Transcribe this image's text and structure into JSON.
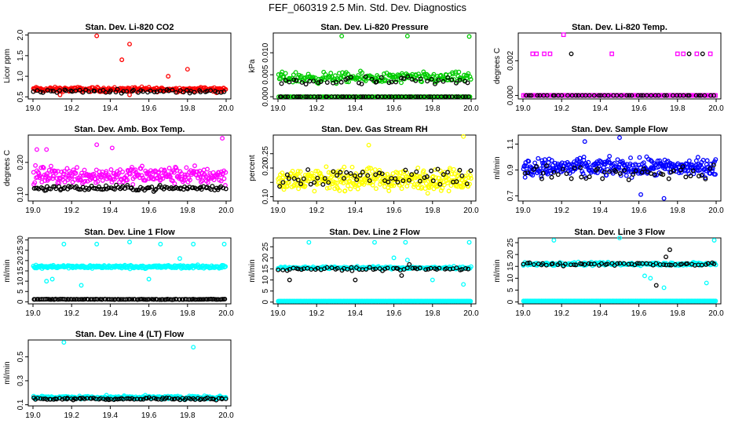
{
  "page": {
    "title": "FEF_060319  2.5 Min. Std. Dev. Diagnostics"
  },
  "colors": {
    "red": "#ff0000",
    "green": "#00cc00",
    "magenta": "#ff00ff",
    "yellow": "#ffff00",
    "blue": "#0000ff",
    "cyan": "#00ffff",
    "black": "#000000"
  },
  "chart_data": [
    {
      "type": "scatter",
      "id": "co2",
      "title": "Stan. Dev. Li-820 CO2",
      "ylabel": "Licor ppm",
      "xlabel": "",
      "xlim": [
        19.0,
        20.0
      ],
      "ylim": [
        0.45,
        2.05
      ],
      "xticks": [
        "19.0",
        "19.2",
        "19.4",
        "19.6",
        "19.8",
        "20.0"
      ],
      "yticks": [
        {
          "v": 0.5,
          "t": "0.5"
        },
        {
          "v": 1.0,
          "t": "1.0"
        },
        {
          "v": 1.5,
          "t": "1.5"
        },
        {
          "v": 2.0,
          "t": "2.0"
        }
      ],
      "series": [
        {
          "color": "#ff0000",
          "base": 0.68,
          "spread": 0.08,
          "count": 260,
          "dist": "even",
          "shape": "circle",
          "extra": [
            [
              19.33,
              1.98
            ],
            [
              19.5,
              1.78
            ],
            [
              19.46,
              1.4
            ],
            [
              19.8,
              1.17
            ],
            [
              19.7,
              1.0
            ],
            [
              19.95,
              0.6
            ],
            [
              19.14,
              0.55
            ],
            [
              19.5,
              0.55
            ]
          ]
        },
        {
          "color": "#000000",
          "base": 0.64,
          "spread": 0.06,
          "count": 60,
          "dist": "even",
          "shape": "circle",
          "extra": []
        }
      ]
    },
    {
      "type": "scatter",
      "id": "pressure",
      "title": "Stan. Dev. Li-820 Pressure",
      "ylabel": "kPa",
      "xlabel": "",
      "xlim": [
        19.0,
        20.0
      ],
      "ylim": [
        -0.0005,
        0.0145
      ],
      "xticks": [
        "19.0",
        "19.2",
        "19.4",
        "19.6",
        "19.8",
        "20.0"
      ],
      "yticks": [
        {
          "v": 0.0,
          "t": "0.000"
        },
        {
          "v": 0.005,
          "t": "0.005"
        },
        {
          "v": 0.01,
          "t": "0.010"
        }
      ],
      "series": [
        {
          "color": "#00cc00",
          "base": 0.0,
          "spread": 0.0,
          "count": 140,
          "dist": "even",
          "shape": "circle",
          "extra": []
        },
        {
          "color": "#00cc00",
          "base": 0.0043,
          "spread": 0.0018,
          "count": 200,
          "dist": "even",
          "shape": "circle",
          "extra": [
            [
              19.33,
              0.0138
            ],
            [
              19.67,
              0.0138
            ],
            [
              19.99,
              0.0137
            ]
          ]
        },
        {
          "color": "#000000",
          "base": 0.0035,
          "spread": 0.0016,
          "count": 45,
          "dist": "even",
          "shape": "circle",
          "extra": []
        },
        {
          "color": "#000000",
          "base": 0.0,
          "spread": 0.0,
          "count": 60,
          "dist": "even",
          "shape": "circle",
          "extra": []
        }
      ]
    },
    {
      "type": "scatter",
      "id": "temp",
      "title": "Stan. Dev. Li-820 Temp.",
      "ylabel": "degrees C",
      "xlabel": "",
      "xlim": [
        19.0,
        20.0
      ],
      "ylim": [
        -0.0002,
        0.0036
      ],
      "xticks": [
        "19.0",
        "19.2",
        "19.4",
        "19.6",
        "19.8",
        "20.0"
      ],
      "yticks": [
        {
          "v": 0.0,
          "t": "0.000"
        },
        {
          "v": 0.002,
          "t": "0.002"
        }
      ],
      "series": [
        {
          "color": "#ff00ff",
          "base": 0.0,
          "spread": 0.0,
          "count": 170,
          "dist": "even",
          "shape": "square",
          "extra": [
            [
              19.05,
              0.0024
            ],
            [
              19.07,
              0.0024
            ],
            [
              19.11,
              0.0024
            ],
            [
              19.14,
              0.0024
            ],
            [
              19.21,
              0.0035
            ],
            [
              19.46,
              0.0024
            ],
            [
              19.8,
              0.0024
            ],
            [
              19.83,
              0.0024
            ],
            [
              19.9,
              0.0024
            ],
            [
              19.97,
              0.0024
            ]
          ]
        },
        {
          "color": "#000000",
          "base": 0.0,
          "spread": 0.0,
          "count": 50,
          "dist": "even",
          "shape": "circle",
          "extra": [
            [
              19.25,
              0.0024
            ],
            [
              19.86,
              0.0024
            ],
            [
              19.93,
              0.0024
            ]
          ]
        }
      ]
    },
    {
      "type": "scatter",
      "id": "boxtemp",
      "title": "Stan. Dev. Amb. Box Temp.",
      "ylabel": "degrees C",
      "xlabel": "",
      "xlim": [
        19.0,
        20.0
      ],
      "ylim": [
        0.08,
        0.285
      ],
      "xticks": [
        "19.0",
        "19.2",
        "19.4",
        "19.6",
        "19.8",
        "20.0"
      ],
      "yticks": [
        {
          "v": 0.1,
          "t": "0.10"
        },
        {
          "v": 0.2,
          "t": "0.20"
        }
      ],
      "series": [
        {
          "color": "#ff00ff",
          "base": 0.16,
          "spread": 0.04,
          "count": 280,
          "dist": "even",
          "shape": "circle",
          "extra": [
            [
              19.98,
              0.275
            ],
            [
              19.33,
              0.255
            ],
            [
              19.41,
              0.245
            ],
            [
              19.07,
              0.24
            ],
            [
              19.02,
              0.24
            ]
          ]
        },
        {
          "color": "#000000",
          "base": 0.12,
          "spread": 0.012,
          "count": 110,
          "dist": "even",
          "shape": "circle",
          "extra": []
        }
      ]
    },
    {
      "type": "scatter",
      "id": "rh",
      "title": "Stan. Dev. Gas Stream RH",
      "ylabel": "percent",
      "xlabel": "",
      "xlim": [
        19.0,
        20.0
      ],
      "ylim": [
        0.085,
        0.315
      ],
      "xticks": [
        "19.0",
        "19.2",
        "19.4",
        "19.6",
        "19.8",
        "20.0"
      ],
      "yticks": [
        {
          "v": 0.1,
          "t": "0.10"
        },
        {
          "v": 0.15,
          "t": ""
        },
        {
          "v": 0.2,
          "t": "0.20"
        },
        {
          "v": 0.25,
          "t": "0.25"
        }
      ],
      "series": [
        {
          "color": "#ffff00",
          "base": 0.16,
          "spread": 0.055,
          "count": 340,
          "dist": "even",
          "shape": "circle",
          "extra": [
            [
              19.96,
              0.31
            ],
            [
              19.47,
              0.28
            ]
          ]
        },
        {
          "color": "#000000",
          "base": 0.17,
          "spread": 0.05,
          "count": 55,
          "dist": "even",
          "shape": "circle",
          "extra": []
        }
      ]
    },
    {
      "type": "scatter",
      "id": "flow",
      "title": "Stan. Dev. Sample Flow",
      "ylabel": "ml/min",
      "xlabel": "",
      "xlim": [
        19.0,
        20.0
      ],
      "ylim": [
        0.66,
        1.17
      ],
      "xticks": [
        "19.0",
        "19.2",
        "19.4",
        "19.6",
        "19.8",
        "20.0"
      ],
      "yticks": [
        {
          "v": 0.7,
          "t": "0.7"
        },
        {
          "v": 0.9,
          "t": "0.9"
        },
        {
          "v": 1.1,
          "t": "1.1"
        }
      ],
      "series": [
        {
          "color": "#0000ff",
          "base": 0.92,
          "spread": 0.1,
          "count": 320,
          "dist": "even",
          "shape": "circle",
          "extra": [
            [
              19.5,
              1.15
            ],
            [
              19.32,
              1.12
            ],
            [
              19.73,
              0.68
            ],
            [
              19.61,
              0.71
            ]
          ]
        },
        {
          "color": "#000000",
          "base": 0.88,
          "spread": 0.08,
          "count": 50,
          "dist": "even",
          "shape": "circle",
          "extra": []
        }
      ]
    },
    {
      "type": "scatter",
      "id": "line1",
      "title": "Stan. Dev. Line 1 Flow",
      "ylabel": "ml/min",
      "xlabel": "",
      "xlim": [
        19.0,
        20.0
      ],
      "ylim": [
        -1,
        31
      ],
      "xticks": [
        "19.0",
        "19.2",
        "19.4",
        "19.6",
        "19.8",
        "20.0"
      ],
      "yticks": [
        {
          "v": 0,
          "t": "0"
        },
        {
          "v": 5,
          "t": "5"
        },
        {
          "v": 10,
          "t": "10"
        },
        {
          "v": 15,
          "t": "15"
        },
        {
          "v": 20,
          "t": "20"
        },
        {
          "v": 25,
          "t": "25"
        },
        {
          "v": 30,
          "t": "30"
        }
      ],
      "series": [
        {
          "color": "#00ffff",
          "base": 17,
          "spread": 1.2,
          "count": 280,
          "dist": "even",
          "shape": "circle",
          "extra": [
            [
              19.16,
              28
            ],
            [
              19.33,
              28
            ],
            [
              19.5,
              29
            ],
            [
              19.66,
              28
            ],
            [
              19.83,
              28
            ],
            [
              19.99,
              28
            ],
            [
              19.1,
              11
            ],
            [
              19.25,
              8
            ],
            [
              19.6,
              11
            ],
            [
              19.76,
              21
            ],
            [
              19.07,
              10
            ]
          ]
        },
        {
          "color": "#000000",
          "base": 1.2,
          "spread": 0.2,
          "count": 120,
          "dist": "even",
          "shape": "circle",
          "extra": []
        }
      ]
    },
    {
      "type": "scatter",
      "id": "line2",
      "title": "Stan. Dev. Line 2 Flow",
      "ylabel": "ml/min",
      "xlabel": "",
      "xlim": [
        19.0,
        20.0
      ],
      "ylim": [
        -0.8,
        29
      ],
      "xticks": [
        "19.0",
        "19.2",
        "19.4",
        "19.6",
        "19.8",
        "20.0"
      ],
      "yticks": [
        {
          "v": 0,
          "t": "0"
        },
        {
          "v": 5,
          "t": "5"
        },
        {
          "v": 10,
          "t": "10"
        },
        {
          "v": 15,
          "t": "15"
        },
        {
          "v": 20,
          "t": "20"
        },
        {
          "v": 25,
          "t": "25"
        }
      ],
      "series": [
        {
          "color": "#00ffff",
          "base": 0.4,
          "spread": 0.0,
          "count": 300,
          "dist": "even",
          "shape": "circle",
          "extra": []
        },
        {
          "color": "#00ffff",
          "base": 15.5,
          "spread": 0.8,
          "count": 200,
          "dist": "even",
          "shape": "circle",
          "extra": [
            [
              19.16,
              27
            ],
            [
              19.5,
              27
            ],
            [
              19.66,
              27
            ],
            [
              19.99,
              27
            ],
            [
              19.6,
              20
            ],
            [
              19.8,
              10
            ],
            [
              19.96,
              8
            ],
            [
              19.67,
              19
            ]
          ]
        },
        {
          "color": "#000000",
          "base": 15,
          "spread": 1.0,
          "count": 60,
          "dist": "even",
          "shape": "circle",
          "extra": [
            [
              19.06,
              10
            ],
            [
              19.4,
              10
            ],
            [
              19.64,
              12
            ],
            [
              19.68,
              17
            ]
          ]
        }
      ]
    },
    {
      "type": "scatter",
      "id": "line3",
      "title": "Stan. Dev. Line 3 Flow",
      "ylabel": "ml/min",
      "xlabel": "",
      "xlim": [
        19.0,
        20.0
      ],
      "ylim": [
        -0.8,
        27
      ],
      "xticks": [
        "19.0",
        "19.2",
        "19.4",
        "19.6",
        "19.8",
        "20.0"
      ],
      "yticks": [
        {
          "v": 0,
          "t": "0"
        },
        {
          "v": 5,
          "t": "5"
        },
        {
          "v": 10,
          "t": "10"
        },
        {
          "v": 15,
          "t": "15"
        },
        {
          "v": 20,
          "t": "20"
        },
        {
          "v": 25,
          "t": "25"
        }
      ],
      "series": [
        {
          "color": "#00ffff",
          "base": 0.4,
          "spread": 0.0,
          "count": 300,
          "dist": "even",
          "shape": "circle",
          "extra": []
        },
        {
          "color": "#00ffff",
          "base": 16,
          "spread": 1.0,
          "count": 220,
          "dist": "even",
          "shape": "circle",
          "extra": [
            [
              19.16,
              26
            ],
            [
              19.5,
              27
            ],
            [
              19.99,
              26
            ],
            [
              19.66,
              10
            ],
            [
              19.73,
              6
            ],
            [
              19.63,
              11
            ],
            [
              19.95,
              8
            ]
          ]
        },
        {
          "color": "#000000",
          "base": 16,
          "spread": 1.0,
          "count": 60,
          "dist": "even",
          "shape": "circle",
          "extra": [
            [
              19.69,
              7
            ],
            [
              19.76,
              22
            ],
            [
              19.74,
              19
            ]
          ]
        }
      ]
    },
    {
      "type": "scatter",
      "id": "line4",
      "title": "Stan. Dev. Line 4 (LT) Flow",
      "ylabel": "ml/min",
      "xlabel": "",
      "xlim": [
        19.0,
        20.0
      ],
      "ylim": [
        0.09,
        0.64
      ],
      "xticks": [
        "19.0",
        "19.2",
        "19.4",
        "19.6",
        "19.8",
        "20.0"
      ],
      "yticks": [
        {
          "v": 0.1,
          "t": "0.1"
        },
        {
          "v": 0.3,
          "t": "0.3"
        },
        {
          "v": 0.5,
          "t": "0.5"
        }
      ],
      "series": [
        {
          "color": "#00ffff",
          "base": 0.16,
          "spread": 0.02,
          "count": 300,
          "dist": "even",
          "shape": "circle",
          "extra": [
            [
              19.16,
              0.62
            ],
            [
              19.83,
              0.58
            ]
          ]
        },
        {
          "color": "#000000",
          "base": 0.15,
          "spread": 0.015,
          "count": 90,
          "dist": "even",
          "shape": "circle",
          "extra": []
        }
      ]
    }
  ]
}
